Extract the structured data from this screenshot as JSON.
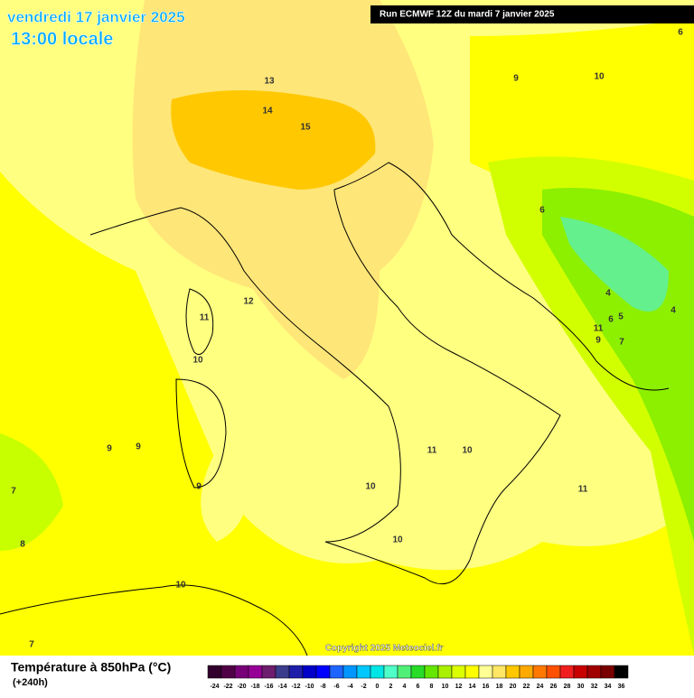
{
  "header": {
    "date": "vendredi 17 janvier 2025",
    "time": "13:00 locale"
  },
  "run": "Run ECMWF 12Z du mardi 7 janvier 2025",
  "contour_labels": [
    13,
    14,
    15,
    12,
    11,
    10,
    9,
    9,
    9,
    7,
    8,
    10,
    7,
    11,
    10,
    11,
    10,
    9,
    10,
    6,
    6,
    4,
    5,
    6,
    4,
    9,
    7,
    11,
    10
  ],
  "copyright": "Copyright 2025 Meteociel.fr",
  "legend": {
    "title": "Température à 850hPa (°C)",
    "subtitle": "(+240h)",
    "ticks": [
      -24,
      -22,
      -20,
      -18,
      -16,
      -14,
      -12,
      -10,
      -8,
      -6,
      -4,
      -2,
      0,
      2,
      4,
      6,
      8,
      10,
      12,
      14,
      16,
      18,
      20,
      22,
      24,
      26,
      28,
      30,
      32,
      34,
      36
    ],
    "colors": [
      "#32002d",
      "#500046",
      "#780078",
      "#960096",
      "#6e1e6e",
      "#3c3c8c",
      "#1e1eaa",
      "#0000c8",
      "#0000ff",
      "#1e64ff",
      "#0096ff",
      "#00c8ff",
      "#00e6e6",
      "#50ffc8",
      "#50f078",
      "#28dc28",
      "#64e600",
      "#aaf000",
      "#dcff00",
      "#ffff00",
      "#ffff96",
      "#ffe664",
      "#ffc800",
      "#ffaa00",
      "#ff7800",
      "#ff5000",
      "#f01e1e",
      "#c80000",
      "#a00000",
      "#780000",
      "#000000"
    ]
  }
}
